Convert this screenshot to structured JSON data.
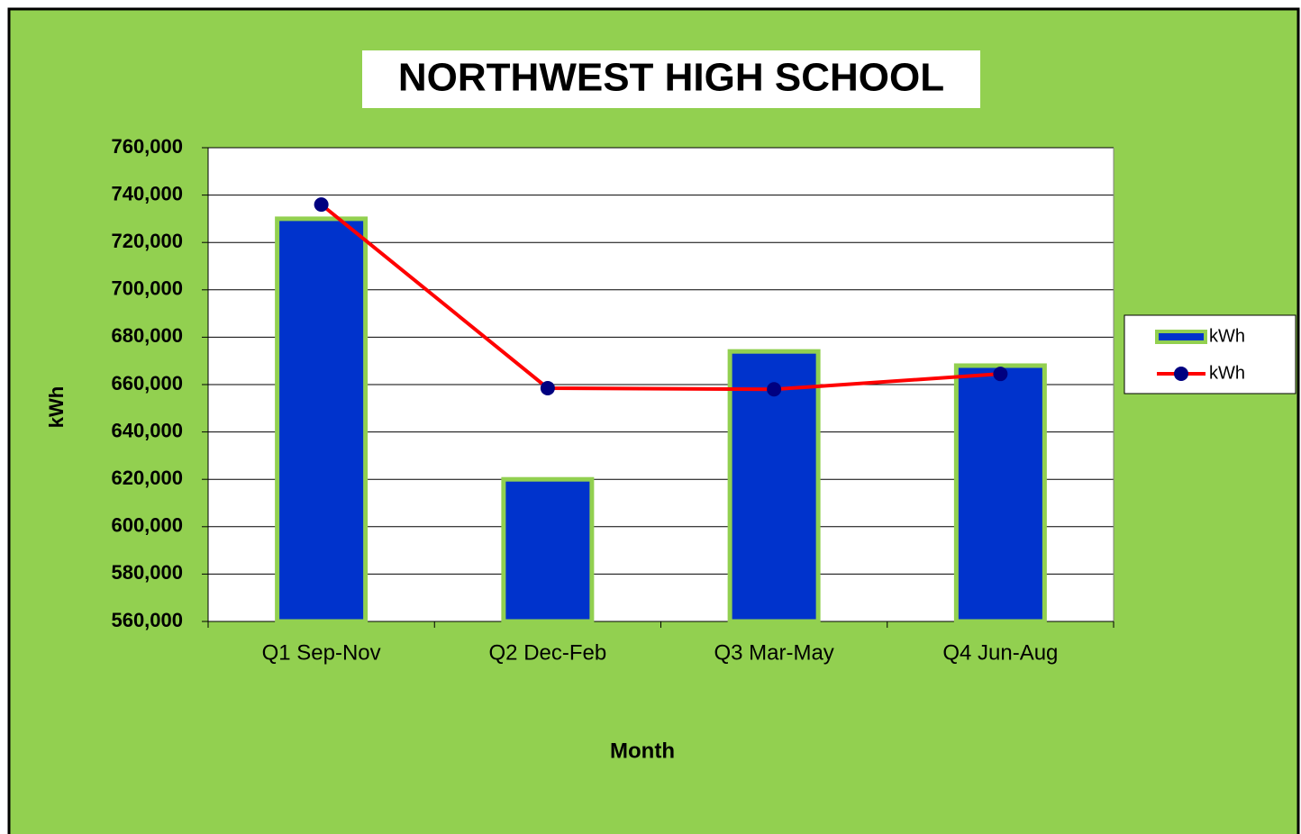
{
  "chart_data": {
    "type": "combo",
    "title": "NORTHWEST HIGH SCHOOL",
    "x_label": "Month",
    "y_label": "kWh",
    "categories": [
      "Q1 Sep-Nov",
      "Q2 Dec-Feb",
      "Q3 Mar-May",
      "Q4 Jun-Aug"
    ],
    "series": [
      {
        "name": "kWh",
        "type": "bar",
        "color": "#0033cc",
        "values": [
          730000,
          620000,
          674000,
          668000
        ]
      },
      {
        "name": "kWh",
        "type": "line",
        "color": "#ff0000",
        "marker_color": "#000080",
        "values": [
          736000,
          658500,
          658000,
          664500
        ]
      }
    ],
    "ylim": [
      560000,
      760000
    ],
    "yticks": [
      {
        "value": 560000,
        "label": "560,000"
      },
      {
        "value": 580000,
        "label": "580,000"
      },
      {
        "value": 600000,
        "label": "600,000"
      },
      {
        "value": 620000,
        "label": "620,000"
      },
      {
        "value": 640000,
        "label": "640,000"
      },
      {
        "value": 660000,
        "label": "660,000"
      },
      {
        "value": 680000,
        "label": "680,000"
      },
      {
        "value": 700000,
        "label": "700,000"
      },
      {
        "value": 720000,
        "label": "720,000"
      },
      {
        "value": 740000,
        "label": "740,000"
      },
      {
        "value": 760000,
        "label": "760,000"
      }
    ],
    "grid": true,
    "legend": "right",
    "background": "#92d050"
  }
}
